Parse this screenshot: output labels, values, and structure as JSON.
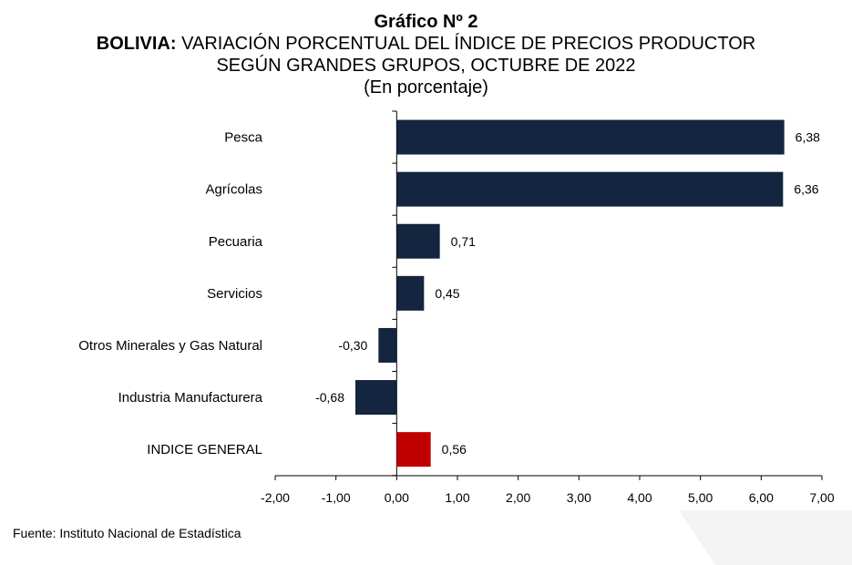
{
  "title": {
    "line1": "Gráfico Nº 2",
    "line2_bold": "BOLIVIA:",
    "line2_rest": " VARIACIÓN PORCENTUAL DEL ÍNDICE DE PRECIOS PRODUCTOR",
    "line3": "SEGÚN GRANDES GRUPOS, OCTUBRE DE 2022",
    "line4": "(En porcentaje)"
  },
  "source": "Fuente: Instituto Nacional de Estadística",
  "colors": {
    "bar": "#13253f",
    "highlight": "#c00000"
  },
  "chart_data": {
    "type": "bar",
    "orientation": "horizontal",
    "title": "Gráfico Nº 2 BOLIVIA: VARIACIÓN PORCENTUAL DEL ÍNDICE DE PRECIOS PRODUCTOR SEGÚN GRANDES GRUPOS, OCTUBRE DE 2022 (En porcentaje)",
    "categories": [
      "Pesca",
      "Agrícolas",
      "Pecuaria",
      "Servicios",
      "Otros Minerales y Gas Natural",
      "Industria Manufacturera",
      "INDICE GENERAL"
    ],
    "values": [
      6.38,
      6.36,
      0.71,
      0.45,
      -0.3,
      -0.68,
      0.56
    ],
    "data_labels": [
      "6,38",
      "6,36",
      "0,71",
      "0,45",
      "-0,30",
      "-0,68",
      "0,56"
    ],
    "highlight_category": "INDICE GENERAL",
    "xlim": [
      -2,
      7
    ],
    "xticks": [
      -2,
      -1,
      0,
      1,
      2,
      3,
      4,
      5,
      6,
      7
    ],
    "xtick_labels": [
      "-2,00",
      "-1,00",
      "0,00",
      "1,00",
      "2,00",
      "3,00",
      "4,00",
      "5,00",
      "6,00",
      "7,00"
    ],
    "xlabel": "",
    "ylabel": "",
    "grid": false,
    "legend": "none"
  }
}
